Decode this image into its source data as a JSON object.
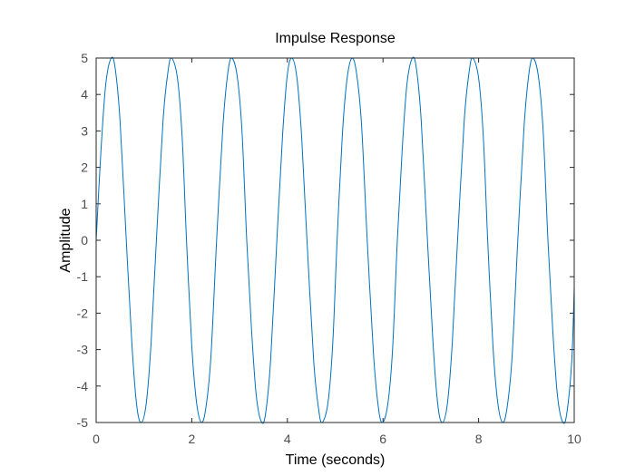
{
  "chart_data": {
    "type": "line",
    "title": "Impulse Response",
    "xlabel": "Time (seconds)",
    "ylabel": "Amplitude",
    "xlim": [
      0,
      10
    ],
    "ylim": [
      -5,
      5
    ],
    "xticks": [
      0,
      2,
      4,
      6,
      8,
      10
    ],
    "yticks": [
      -5,
      -4,
      -3,
      -2,
      -1,
      0,
      1,
      2,
      3,
      4,
      5
    ],
    "grid": false,
    "box": true,
    "series": [
      {
        "color": "#0072bd",
        "x": [
          0,
          0.1,
          0.2,
          0.315,
          0.4,
          0.5,
          0.63,
          0.75,
          0.85,
          0.945,
          1.05,
          1.15,
          1.26,
          1.4,
          1.5,
          1.575,
          1.7,
          1.8,
          1.89,
          2.0,
          2.1,
          2.205,
          2.3,
          2.4,
          2.52,
          2.65,
          2.75,
          2.835,
          2.95,
          3.05,
          3.15,
          3.25,
          3.35,
          3.465,
          3.55,
          3.65,
          3.78,
          3.9,
          4.0,
          4.095,
          4.2,
          4.3,
          4.41,
          4.55,
          4.65,
          4.725,
          4.85,
          4.95,
          5.04,
          5.15,
          5.25,
          5.355,
          5.45,
          5.55,
          5.67,
          5.8,
          5.9,
          5.985,
          6.1,
          6.2,
          6.3,
          6.4,
          6.5,
          6.615,
          6.7,
          6.8,
          6.93,
          7.05,
          7.15,
          7.245,
          7.35,
          7.45,
          7.56,
          7.7,
          7.8,
          7.875,
          8.0,
          8.1,
          8.19,
          8.3,
          8.4,
          8.505,
          8.6,
          8.7,
          8.82,
          8.95,
          9.05,
          9.135,
          9.25,
          9.35,
          9.45,
          9.55,
          9.65,
          9.765,
          9.85,
          9.95,
          10.0
        ],
        "y": [
          0,
          2.45,
          4.27,
          5.0,
          4.7,
          3.27,
          0,
          -2.9,
          -4.55,
          -5.0,
          -4.45,
          -2.8,
          0,
          3.3,
          4.6,
          5.0,
          4.45,
          2.8,
          0,
          -2.9,
          -4.45,
          -5.0,
          -4.55,
          -3.2,
          0,
          3.1,
          4.55,
          5.0,
          4.5,
          3.0,
          0,
          -2.45,
          -4.27,
          -5.0,
          -4.7,
          -3.27,
          0,
          2.9,
          4.55,
          5.0,
          4.45,
          2.8,
          0,
          -3.3,
          -4.6,
          -5.0,
          -4.45,
          -2.8,
          0,
          2.9,
          4.45,
          5.0,
          4.55,
          3.2,
          0,
          -3.1,
          -4.55,
          -5.0,
          -4.5,
          -3.0,
          0,
          2.45,
          4.27,
          5.0,
          4.7,
          3.27,
          0,
          -2.9,
          -4.55,
          -5.0,
          -4.45,
          -2.8,
          0,
          3.3,
          4.6,
          5.0,
          4.45,
          2.8,
          0,
          -2.9,
          -4.45,
          -5.0,
          -4.55,
          -3.2,
          0,
          3.1,
          4.55,
          5.0,
          4.5,
          3.0,
          0,
          -2.45,
          -4.27,
          -5.0,
          -4.7,
          -3.27,
          -1.3
        ]
      }
    ]
  }
}
